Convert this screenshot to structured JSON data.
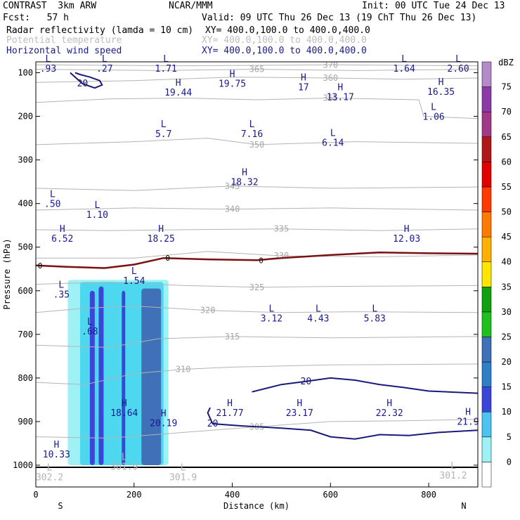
{
  "header": {
    "line1_left": "CONTRAST  3km ARW",
    "line1_mid": "NCAR/MMM",
    "line1_right": "Init: 00 UTC Tue 24 Dec 13",
    "line2_left": "Fcst:   57 h",
    "line2_right": "Valid: 09 UTC Thu 26 Dec 13 (19 ChT Thu 26 Dec 13)",
    "field1_name": "Radar reflectivity (lamda = 10 cm)",
    "field1_xy": "XY= 400.0,100.0 to 400.0,400.0",
    "field2_name": "Potential temperature",
    "field2_xy": "XY= 400.0,100.0 to 400.0,400.0",
    "field3_name": "Horizontal wind speed",
    "field3_xy": "XY= 400.0,100.0 to 400.0,400.0"
  },
  "colors": {
    "theta": "#b4b4b4",
    "wind": "#1a1a7a",
    "freezing": "#7a1010",
    "refl_5": "#9ef2f5",
    "refl_10": "#4dd8f0",
    "refl_15": "#3a46d8",
    "refl_20": "#4070b8"
  },
  "chart_data": {
    "type": "cross-section",
    "xlabel": "Distance (km)",
    "ylabel": "Pressure (hPa)",
    "xlim": [
      0,
      900
    ],
    "ylim": [
      1050,
      75
    ],
    "x_ticks": [
      0,
      200,
      400,
      600,
      800
    ],
    "y_ticks": [
      100,
      200,
      300,
      400,
      500,
      600,
      700,
      800,
      900,
      1000
    ],
    "x_end_labels": {
      "left": "S",
      "right": "N"
    },
    "colorbar": {
      "unit": "dBZ",
      "levels": [
        0,
        5,
        10,
        15,
        20,
        25,
        30,
        35,
        40,
        45,
        50,
        55,
        60,
        65,
        70,
        75
      ],
      "colors": [
        "#ffffff",
        "#9ef2f5",
        "#4dc4f0",
        "#3a46d8",
        "#2f7ec8",
        "#4070b8",
        "#1fbf1f",
        "#10a010",
        "#ffe600",
        "#ffb000",
        "#ff7a00",
        "#ff3a00",
        "#e00000",
        "#b01818",
        "#a03a88",
        "#8c3aa8",
        "#b48ac8"
      ]
    },
    "theta_contours": [
      {
        "label": "305",
        "points": [
          [
            0,
            935
          ],
          [
            150,
            938
          ],
          [
            300,
            925
          ],
          [
            450,
            912
          ],
          [
            600,
            900
          ],
          [
            750,
            898
          ],
          [
            900,
            895
          ]
        ]
      },
      {
        "label": "310",
        "points": [
          [
            0,
            810
          ],
          [
            100,
            815
          ],
          [
            200,
            790
          ],
          [
            300,
            780
          ],
          [
            400,
            775
          ],
          [
            600,
            770
          ],
          [
            900,
            768
          ]
        ]
      },
      {
        "label": "315",
        "points": [
          [
            0,
            725
          ],
          [
            150,
            730
          ],
          [
            250,
            710
          ],
          [
            400,
            705
          ],
          [
            600,
            708
          ],
          [
            900,
            705
          ]
        ]
      },
      {
        "label": "320",
        "points": [
          [
            0,
            650
          ],
          [
            100,
            640
          ],
          [
            200,
            635
          ],
          [
            350,
            645
          ],
          [
            500,
            650
          ],
          [
            650,
            648
          ],
          [
            900,
            650
          ]
        ]
      },
      {
        "label": "325",
        "points": [
          [
            0,
            585
          ],
          [
            150,
            580
          ],
          [
            300,
            588
          ],
          [
            450,
            592
          ],
          [
            600,
            590
          ],
          [
            900,
            588
          ]
        ]
      },
      {
        "label": "330",
        "points": [
          [
            0,
            525
          ],
          [
            200,
            525
          ],
          [
            350,
            510
          ],
          [
            500,
            520
          ],
          [
            700,
            522
          ],
          [
            900,
            518
          ]
        ]
      },
      {
        "label": "335",
        "points": [
          [
            0,
            460
          ],
          [
            150,
            462
          ],
          [
            300,
            460
          ],
          [
            500,
            458
          ],
          [
            700,
            462
          ],
          [
            900,
            458
          ]
        ]
      },
      {
        "label": "340",
        "points": [
          [
            0,
            415
          ],
          [
            200,
            410
          ],
          [
            400,
            413
          ],
          [
            600,
            410
          ],
          [
            900,
            415
          ]
        ]
      },
      {
        "label": "345",
        "points": [
          [
            0,
            365
          ],
          [
            200,
            370
          ],
          [
            400,
            360
          ],
          [
            600,
            365
          ],
          [
            900,
            362
          ]
        ]
      },
      {
        "label": "350",
        "points": [
          [
            0,
            265
          ],
          [
            200,
            258
          ],
          [
            350,
            250
          ],
          [
            450,
            265
          ],
          [
            650,
            258
          ],
          [
            900,
            262
          ]
        ]
      },
      {
        "label": "355",
        "points": [
          [
            0,
            168
          ],
          [
            150,
            160
          ],
          [
            300,
            158
          ],
          [
            450,
            162
          ],
          [
            600,
            158
          ],
          [
            780,
            162
          ],
          [
            790,
            200
          ],
          [
            900,
            205
          ]
        ]
      },
      {
        "label": "360",
        "points": [
          [
            0,
            122
          ],
          [
            200,
            118
          ],
          [
            400,
            110
          ],
          [
            600,
            112
          ],
          [
            750,
            115
          ],
          [
            900,
            112
          ]
        ]
      },
      {
        "label": "365",
        "points": [
          [
            0,
            92
          ],
          [
            250,
            95
          ],
          [
            450,
            92
          ],
          [
            650,
            95
          ],
          [
            900,
            92
          ]
        ]
      },
      {
        "label": "370",
        "points": [
          [
            0,
            82
          ],
          [
            300,
            84
          ],
          [
            600,
            82
          ],
          [
            900,
            84
          ]
        ]
      }
    ],
    "freezing_level": {
      "label": "0",
      "points": [
        [
          0,
          542
        ],
        [
          60,
          545
        ],
        [
          140,
          548
        ],
        [
          200,
          540
        ],
        [
          260,
          525
        ],
        [
          350,
          528
        ],
        [
          450,
          530
        ],
        [
          500,
          525
        ],
        [
          600,
          518
        ],
        [
          700,
          512
        ],
        [
          800,
          514
        ],
        [
          900,
          515
        ]
      ]
    },
    "wind_contours": [
      {
        "label": "20",
        "points": [
          [
            440,
            832
          ],
          [
            500,
            815
          ],
          [
            550,
            808
          ],
          [
            600,
            800
          ],
          [
            650,
            805
          ],
          [
            700,
            815
          ],
          [
            750,
            822
          ],
          [
            800,
            830
          ],
          [
            900,
            835
          ]
        ]
      },
      {
        "label": "20",
        "points": [
          [
            355,
            868
          ],
          [
            350,
            880
          ],
          [
            360,
            905
          ],
          [
            420,
            910
          ],
          [
            500,
            915
          ],
          [
            560,
            920
          ],
          [
            600,
            935
          ],
          [
            650,
            940
          ],
          [
            700,
            930
          ],
          [
            760,
            932
          ],
          [
            820,
            925
          ],
          [
            900,
            920
          ]
        ]
      },
      {
        "label": "20",
        "points": [
          [
            70,
            100
          ],
          [
            80,
            110
          ],
          [
            95,
            125
          ],
          [
            120,
            135
          ],
          [
            135,
            128
          ],
          [
            130,
            118
          ],
          [
            110,
            110
          ],
          [
            90,
            104
          ],
          [
            80,
            100
          ]
        ]
      }
    ],
    "reflectivity_cells": [
      {
        "x0": 65,
        "x1": 270,
        "p_top": 575,
        "p_bot": 1000,
        "dbz": 5
      },
      {
        "x0": 90,
        "x1": 260,
        "p_top": 580,
        "p_bot": 1000,
        "dbz": 10
      },
      {
        "x0": 110,
        "x1": 120,
        "p_top": 600,
        "p_bot": 1000,
        "dbz": 15
      },
      {
        "x0": 128,
        "x1": 138,
        "p_top": 590,
        "p_bot": 1000,
        "dbz": 15
      },
      {
        "x0": 175,
        "x1": 182,
        "p_top": 600,
        "p_bot": 1000,
        "dbz": 15
      },
      {
        "x0": 215,
        "x1": 255,
        "p_top": 595,
        "p_bot": 1000,
        "dbz": 20
      }
    ],
    "hl_labels": [
      {
        "x": 25,
        "p": 75,
        "letter": "L",
        "value": ".93"
      },
      {
        "x": 140,
        "p": 75,
        "letter": "L",
        "value": ".27"
      },
      {
        "x": 265,
        "p": 75,
        "letter": "L",
        "value": "1.71"
      },
      {
        "x": 750,
        "p": 75,
        "letter": "L",
        "value": "1.64"
      },
      {
        "x": 860,
        "p": 75,
        "letter": "L",
        "value": "2.60"
      },
      {
        "x": 290,
        "p": 130,
        "letter": "H",
        "value": "19.44"
      },
      {
        "x": 400,
        "p": 110,
        "letter": "H",
        "value": "19.75"
      },
      {
        "x": 545,
        "p": 118,
        "letter": "H",
        "value": "17"
      },
      {
        "x": 620,
        "p": 140,
        "letter": "H",
        "value": "13.17"
      },
      {
        "x": 825,
        "p": 128,
        "letter": "H",
        "value": "16.35"
      },
      {
        "x": 810,
        "p": 185,
        "letter": "L",
        "value": "1.06"
      },
      {
        "x": 260,
        "p": 225,
        "letter": "L",
        "value": "5.7"
      },
      {
        "x": 440,
        "p": 225,
        "letter": "L",
        "value": "7.16"
      },
      {
        "x": 605,
        "p": 245,
        "letter": "L",
        "value": "6.14"
      },
      {
        "x": 425,
        "p": 335,
        "letter": "H",
        "value": "18.32"
      },
      {
        "x": 34,
        "p": 385,
        "letter": "L",
        "value": ".50"
      },
      {
        "x": 125,
        "p": 410,
        "letter": "L",
        "value": "1.10"
      },
      {
        "x": 54,
        "p": 465,
        "letter": "H",
        "value": "6.52"
      },
      {
        "x": 255,
        "p": 465,
        "letter": "H",
        "value": "18.25"
      },
      {
        "x": 755,
        "p": 465,
        "letter": "H",
        "value": "12.03"
      },
      {
        "x": 200,
        "p": 562,
        "letter": "L",
        "value": "1.54"
      },
      {
        "x": 52,
        "p": 593,
        "letter": "L",
        "value": ".35"
      },
      {
        "x": 480,
        "p": 648,
        "letter": "L",
        "value": "3.12"
      },
      {
        "x": 575,
        "p": 648,
        "letter": "L",
        "value": "4.43"
      },
      {
        "x": 690,
        "p": 648,
        "letter": "L",
        "value": "5.83"
      },
      {
        "x": 110,
        "p": 678,
        "letter": "L",
        "value": ".68"
      },
      {
        "x": 180,
        "p": 865,
        "letter": "H",
        "value": "18.64"
      },
      {
        "x": 260,
        "p": 888,
        "letter": "H",
        "value": "20.19"
      },
      {
        "x": 395,
        "p": 865,
        "letter": "H",
        "value": "21.77"
      },
      {
        "x": 537,
        "p": 865,
        "letter": "H",
        "value": "23.17"
      },
      {
        "x": 720,
        "p": 865,
        "letter": "H",
        "value": "22.32"
      },
      {
        "x": 880,
        "p": 885,
        "letter": "H",
        "value": "21.9"
      },
      {
        "x": 42,
        "p": 960,
        "letter": "H",
        "value": "10.33"
      },
      {
        "x": 180,
        "p": 988,
        "letter": "L",
        "value": "301.9"
      },
      {
        "x": 300,
        "p": 1012,
        "letter": "L",
        "value": "301.9"
      },
      {
        "x": 28,
        "p": 1012,
        "letter": "L",
        "value": "302.2"
      },
      {
        "x": 850,
        "p": 1008,
        "letter": "L",
        "value": "301.2"
      }
    ]
  }
}
